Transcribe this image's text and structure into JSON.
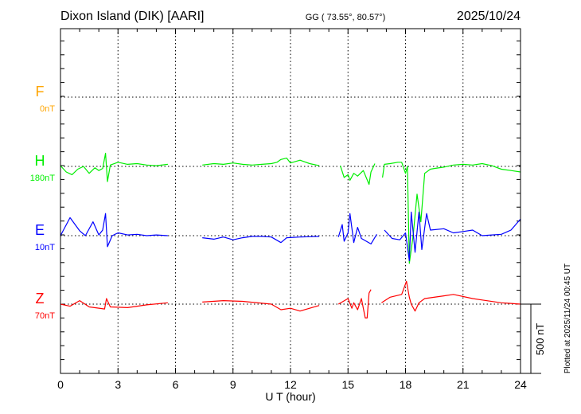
{
  "header": {
    "station": "Dixon Island (DIK)  [AARI]",
    "coords": "GG ( 73.55°,  80.57°)",
    "date": "2025/10/24"
  },
  "footer": {
    "plotted": "Plotted at 2025/11/24 00:45 UT"
  },
  "chart_data": {
    "type": "line",
    "title": "Dixon Island (DIK)  [AARI]",
    "xlabel": "U T (hour)",
    "xlim": [
      0,
      24
    ],
    "xticks": [
      "0",
      "3",
      "6",
      "9",
      "12",
      "15",
      "18",
      "21",
      "24"
    ],
    "scale_bar": {
      "label": "500 nT",
      "value": 500
    },
    "grid": true,
    "series": [
      {
        "name": "F",
        "baseline_label": "0nT",
        "color": "#FFA500",
        "points": []
      },
      {
        "name": "H",
        "baseline_label": "180nT",
        "color": "#00EE00",
        "points": [
          [
            0,
            5
          ],
          [
            0.3,
            -40
          ],
          [
            0.6,
            -60
          ],
          [
            0.9,
            -20
          ],
          [
            1.2,
            0
          ],
          [
            1.5,
            -50
          ],
          [
            1.8,
            -10
          ],
          [
            2.0,
            -30
          ],
          [
            2.2,
            -15
          ],
          [
            2.35,
            95
          ],
          [
            2.45,
            -110
          ],
          [
            2.6,
            10
          ],
          [
            3,
            30
          ],
          [
            3.5,
            15
          ],
          [
            4,
            20
          ],
          [
            4.5,
            10
          ],
          [
            5,
            5
          ],
          [
            5.6,
            15
          ],
          null,
          [
            7.4,
            10
          ],
          [
            8,
            20
          ],
          [
            8.5,
            15
          ],
          [
            9,
            25
          ],
          [
            9.5,
            15
          ],
          [
            10,
            10
          ],
          [
            10.5,
            15
          ],
          [
            11,
            20
          ],
          [
            11.3,
            30
          ],
          [
            11.5,
            50
          ],
          [
            11.8,
            60
          ],
          [
            12,
            25
          ],
          [
            12.5,
            45
          ],
          [
            13,
            20
          ],
          [
            13.5,
            5
          ],
          null,
          [
            14.6,
            5
          ],
          [
            14.8,
            -80
          ],
          [
            15,
            -60
          ],
          [
            15.1,
            -100
          ],
          [
            15.3,
            -50
          ],
          [
            15.5,
            -70
          ],
          [
            15.8,
            -30
          ],
          [
            16.1,
            -130
          ],
          [
            16.2,
            -40
          ],
          [
            16.4,
            20
          ],
          null,
          [
            16.8,
            -80
          ],
          [
            16.9,
            15
          ],
          [
            17.2,
            20
          ],
          [
            17.6,
            30
          ],
          [
            17.8,
            30
          ],
          [
            18,
            -50
          ],
          [
            18.1,
            0
          ],
          [
            18.2,
            -700
          ],
          [
            18.4,
            -500
          ],
          [
            18.6,
            -200
          ],
          [
            18.8,
            -400
          ],
          [
            19,
            -50
          ],
          [
            19.3,
            -20
          ],
          [
            19.5,
            -15
          ],
          [
            20,
            -5
          ],
          [
            20.5,
            10
          ],
          [
            21,
            15
          ],
          [
            21.5,
            10
          ],
          [
            22,
            20
          ],
          [
            22.5,
            5
          ],
          [
            23,
            -20
          ],
          [
            23.5,
            -30
          ],
          [
            24,
            -40
          ]
        ]
      },
      {
        "name": "E",
        "baseline_label": "10nT",
        "color": "#0000FF",
        "points": [
          [
            0,
            0
          ],
          [
            0.5,
            130
          ],
          [
            1,
            35
          ],
          [
            1.3,
            0
          ],
          [
            1.7,
            100
          ],
          [
            2,
            5
          ],
          [
            2.2,
            40
          ],
          [
            2.35,
            160
          ],
          [
            2.45,
            -80
          ],
          [
            2.7,
            0
          ],
          [
            3,
            20
          ],
          [
            3.5,
            5
          ],
          [
            4,
            10
          ],
          [
            4.5,
            0
          ],
          [
            5,
            5
          ],
          [
            5.6,
            0
          ],
          null,
          [
            7.4,
            -15
          ],
          [
            8,
            -25
          ],
          [
            8.5,
            -10
          ],
          [
            9,
            -30
          ],
          [
            9.5,
            -15
          ],
          [
            10,
            -5
          ],
          [
            10.5,
            -5
          ],
          [
            11,
            -10
          ],
          [
            11.5,
            -50
          ],
          [
            11.8,
            -15
          ],
          [
            12.5,
            -10
          ],
          [
            13.5,
            -5
          ],
          null,
          [
            14.5,
            -10
          ],
          [
            14.7,
            80
          ],
          [
            14.8,
            -40
          ],
          [
            15,
            20
          ],
          [
            15.1,
            160
          ],
          [
            15.3,
            -50
          ],
          [
            15.5,
            60
          ],
          [
            15.7,
            -20
          ],
          [
            16.2,
            -60
          ],
          [
            16.5,
            10
          ],
          null,
          [
            16.9,
            40
          ],
          [
            17.3,
            -20
          ],
          [
            17.7,
            -30
          ],
          [
            18,
            20
          ],
          [
            18.2,
            -180
          ],
          [
            18.3,
            170
          ],
          [
            18.5,
            -120
          ],
          [
            18.7,
            170
          ],
          [
            18.85,
            -100
          ],
          [
            19.1,
            160
          ],
          [
            19.3,
            40
          ],
          [
            20,
            50
          ],
          [
            20.5,
            20
          ],
          [
            21,
            30
          ],
          [
            21.5,
            40
          ],
          [
            22,
            0
          ],
          [
            22.5,
            5
          ],
          [
            23,
            10
          ],
          [
            23.5,
            40
          ],
          [
            24,
            120
          ]
        ]
      },
      {
        "name": "Z",
        "baseline_label": "70nT",
        "color": "#FF0000",
        "points": [
          [
            0,
            0
          ],
          [
            0.5,
            -15
          ],
          [
            1,
            25
          ],
          [
            1.5,
            -20
          ],
          [
            2.3,
            -35
          ],
          [
            2.4,
            40
          ],
          [
            2.6,
            -20
          ],
          [
            3.5,
            -25
          ],
          [
            4.5,
            -5
          ],
          [
            5.6,
            10
          ],
          null,
          [
            7.4,
            15
          ],
          [
            8.5,
            25
          ],
          [
            9.5,
            20
          ],
          [
            11,
            0
          ],
          [
            11.5,
            -40
          ],
          [
            12,
            -30
          ],
          [
            12.5,
            -50
          ],
          [
            13.5,
            -10
          ],
          null,
          [
            14.5,
            0
          ],
          [
            15,
            40
          ],
          [
            15.2,
            -30
          ],
          [
            15.3,
            10
          ],
          [
            15.5,
            -40
          ],
          [
            15.7,
            40
          ],
          [
            15.9,
            -100
          ],
          [
            16,
            -100
          ],
          [
            16.1,
            80
          ],
          [
            16.2,
            105
          ],
          null,
          [
            16.75,
            10
          ],
          [
            17.2,
            50
          ],
          [
            17.8,
            70
          ],
          [
            18.05,
            165
          ],
          [
            18.2,
            50
          ],
          [
            18.3,
            0
          ],
          [
            18.5,
            -50
          ],
          [
            18.7,
            10
          ],
          [
            19,
            40
          ],
          [
            20,
            60
          ],
          [
            20.5,
            70
          ],
          [
            21.5,
            40
          ],
          [
            22,
            30
          ],
          [
            23,
            10
          ],
          [
            24,
            0
          ]
        ]
      }
    ]
  }
}
